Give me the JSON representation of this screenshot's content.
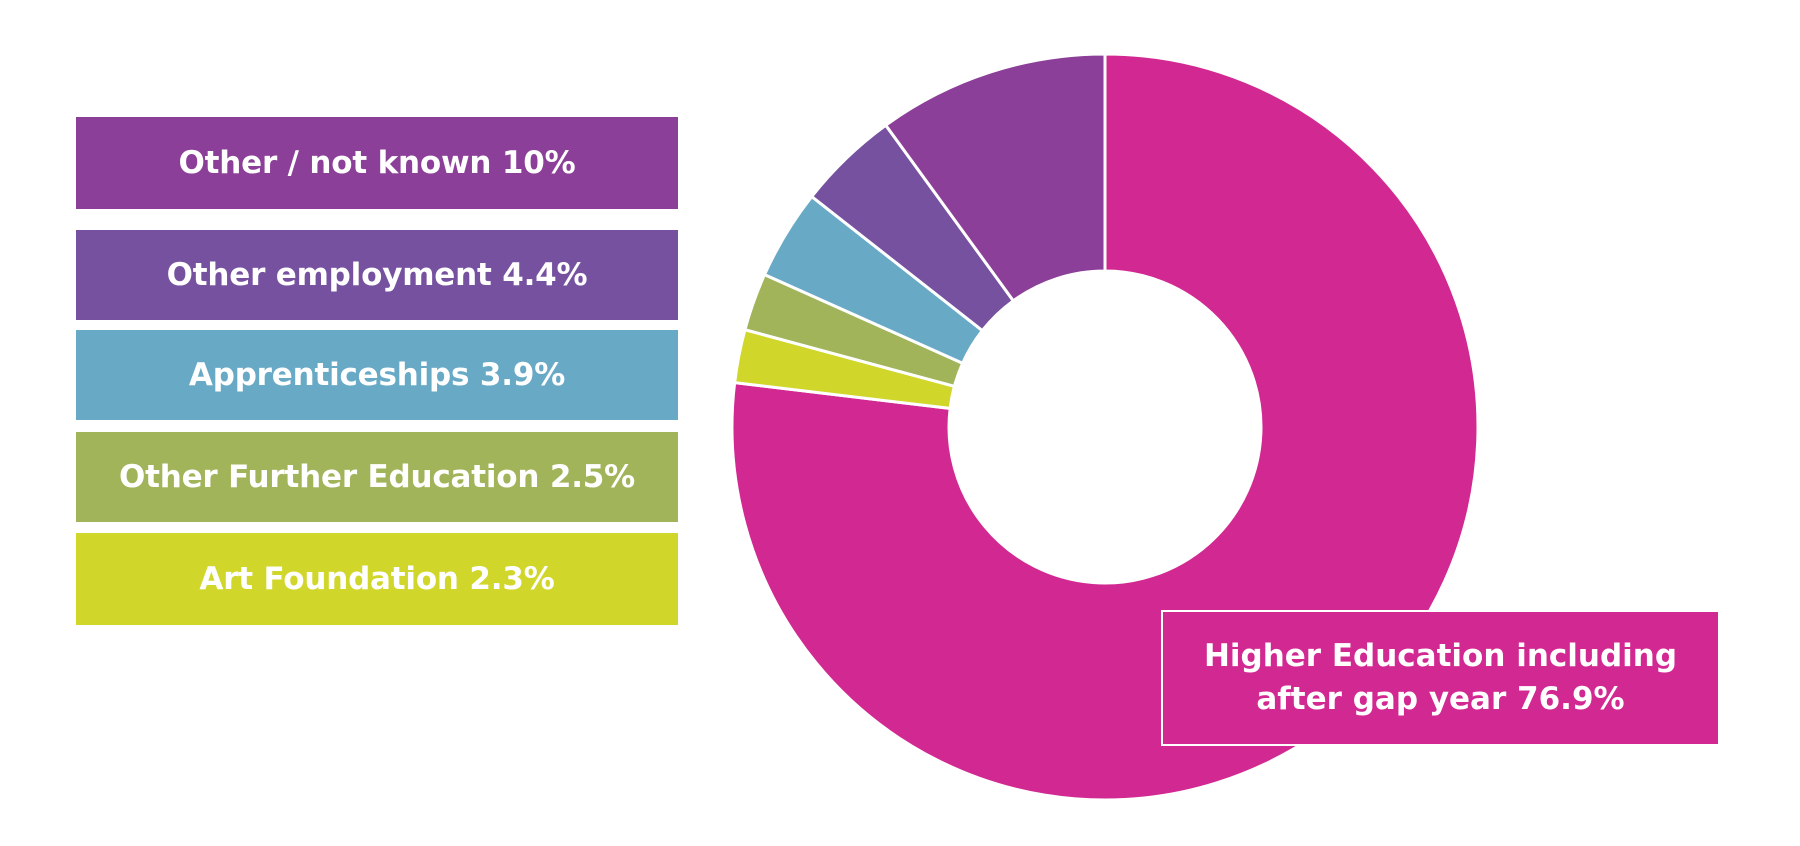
{
  "chart_data": {
    "type": "pie",
    "style": "donut",
    "categories": [
      "Higher Education including after gap year",
      "Art Foundation",
      "Other Further Education",
      "Apprenticeships",
      "Other employment",
      "Other / not known"
    ],
    "values": [
      76.9,
      2.3,
      2.5,
      3.9,
      4.4,
      10.0
    ],
    "colors": [
      "#d22892",
      "#d1d62b",
      "#a1b45a",
      "#68a9c6",
      "#76519f",
      "#8b3f98"
    ],
    "legend": [
      {
        "label": "Other / not known 10%",
        "color": "#8b3f98"
      },
      {
        "label": "Other employment 4.4%",
        "color": "#76519f"
      },
      {
        "label": "Apprenticeships 3.9%",
        "color": "#68a9c6"
      },
      {
        "label": "Other Further Education 2.5%",
        "color": "#a1b45a"
      },
      {
        "label": "Art Foundation 2.3%",
        "color": "#d1d62b"
      }
    ],
    "callout": {
      "line1": "Higher Education including",
      "line2": "after gap year 76.9%",
      "color": "#d22892"
    },
    "start_angle_deg": 0,
    "direction": "clockwise",
    "legend_placement": "left"
  }
}
